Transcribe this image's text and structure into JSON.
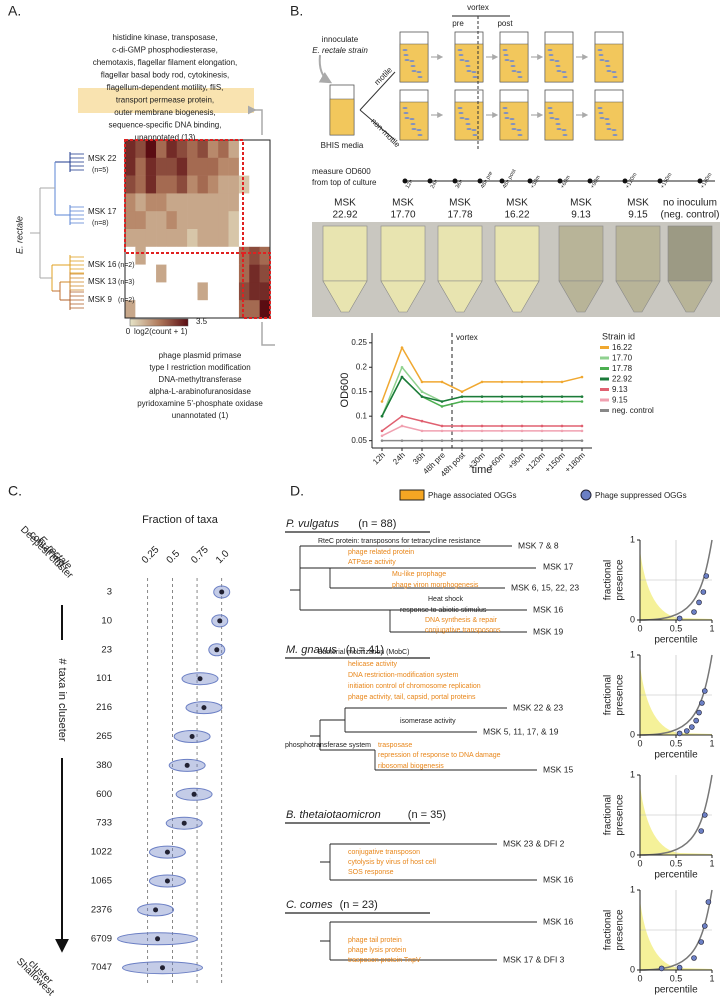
{
  "panel_a": {
    "label": "A.",
    "top_annotation": [
      "histidine kinase, transposase,",
      "c-di-GMP phosphodiesterase,",
      "chemotaxis, flagellar filament elongation,",
      "flagellar basal body rod, cytokinesis,",
      "flagellum-dependent motility, fliS,",
      "transport permease protein,",
      "outer membrane biogenesis,",
      "sequence-specific DNA binding,",
      "unannotated (13)"
    ],
    "bottom_annotation": [
      "phage plasmid primase",
      "type I restriction modification",
      "DNA-methyltransferase",
      "alpha-L-arabinofuranosidase",
      "pyridoxamine 5'-phosphate oxidase",
      "unannotated (1)"
    ],
    "species": "E. rectale",
    "clusters": [
      {
        "name": "MSK 22",
        "n": "(n=5)",
        "color": "#1f3b8f"
      },
      {
        "name": "MSK 17",
        "n": "(n=8)",
        "color": "#5b86d6"
      },
      {
        "name": "MSK 16",
        "n": "(n=2)",
        "color": "#e0a020"
      },
      {
        "name": "MSK 13",
        "n": "(n=3)",
        "color": "#d08a2a"
      },
      {
        "name": "MSK 9",
        "n": "(n=2)",
        "color": "#b0602a"
      }
    ],
    "heatmap": [
      [
        3,
        2.5,
        3.5,
        2,
        3,
        2.5,
        2,
        2.5,
        1.5,
        2,
        1,
        0,
        0,
        0
      ],
      [
        3,
        2,
        3,
        2.5,
        2.5,
        3,
        2,
        2,
        2,
        1.5,
        1.5,
        0,
        0,
        0
      ],
      [
        2.5,
        2,
        3,
        2,
        2,
        2.5,
        1.5,
        2,
        1.5,
        1,
        1,
        0.5,
        0,
        0
      ],
      [
        1.5,
        1,
        1.5,
        1.5,
        1,
        1,
        1,
        1,
        1,
        1,
        1,
        0,
        0,
        0
      ],
      [
        1.5,
        1.5,
        1,
        1,
        1.5,
        1,
        1,
        1,
        1,
        1,
        0.5,
        0,
        0,
        0
      ],
      [
        1,
        1,
        1,
        1,
        1,
        1,
        0.5,
        1,
        1,
        1,
        0.5,
        0,
        0,
        0
      ],
      [
        0,
        1,
        0,
        0,
        0,
        0,
        0,
        0,
        0,
        0,
        0,
        2,
        2.5,
        2
      ],
      [
        0,
        0,
        0,
        1,
        0,
        0,
        0,
        0,
        0,
        0,
        0,
        2,
        3,
        2.5
      ],
      [
        0,
        0,
        0,
        0,
        0,
        0,
        0,
        1,
        0,
        0,
        0,
        2.5,
        3,
        3
      ],
      [
        1,
        0,
        0,
        0,
        0,
        0,
        0,
        0,
        0,
        0,
        0,
        2,
        2,
        3.5
      ]
    ],
    "colorbar": {
      "min": 0,
      "max": 3.5,
      "label": "log2(count + 1)"
    }
  },
  "panel_b": {
    "label": "B.",
    "inoculate": "innoculate",
    "strain": "E. rectale strain",
    "media": "BHIS media",
    "motile": "motile",
    "non_motile": "non-motile",
    "vortex": "vortex",
    "pre": "pre",
    "post": "post",
    "measure": [
      "measure OD600",
      "from top of culture"
    ],
    "tubes": [
      [
        "MSK",
        "22.92"
      ],
      [
        "MSK",
        "17.70"
      ],
      [
        "MSK",
        "17.78"
      ],
      [
        "MSK",
        "16.22"
      ],
      [
        "MSK",
        "9.13"
      ],
      [
        "MSK",
        "9.15"
      ],
      [
        "no inoculum",
        "(neg. control)"
      ]
    ]
  },
  "chart_data": [
    {
      "type": "line",
      "ylabel": "OD600",
      "xlabel": "time",
      "annotation": "vortex",
      "legend_title": "Strain id",
      "categories": [
        "12h",
        "24h",
        "36h",
        "48h pre",
        "48h post",
        "+30m",
        "+60m",
        "+90m",
        "+120m",
        "+150m",
        "+180m"
      ],
      "ylim": [
        0.035,
        0.27
      ],
      "yticks": [
        0.05,
        0.1,
        0.15,
        0.2,
        0.25
      ],
      "series": [
        {
          "name": "16.22",
          "color": "#f0a830",
          "values": [
            0.13,
            0.24,
            0.17,
            0.17,
            0.15,
            0.17,
            0.17,
            0.17,
            0.17,
            0.17,
            0.18
          ]
        },
        {
          "name": "17.70",
          "color": "#8fd18f",
          "values": [
            0.1,
            0.2,
            0.15,
            0.13,
            0.14,
            0.14,
            0.14,
            0.14,
            0.14,
            0.14,
            0.14
          ]
        },
        {
          "name": "17.78",
          "color": "#4caf50",
          "values": [
            0.1,
            0.18,
            0.14,
            0.12,
            0.13,
            0.13,
            0.13,
            0.13,
            0.13,
            0.13,
            0.13
          ]
        },
        {
          "name": "22.92",
          "color": "#1b7a3a",
          "values": [
            0.1,
            0.18,
            0.14,
            0.13,
            0.14,
            0.14,
            0.14,
            0.14,
            0.14,
            0.14,
            0.14
          ]
        },
        {
          "name": "9.13",
          "color": "#e06070",
          "values": [
            0.07,
            0.1,
            0.09,
            0.08,
            0.08,
            0.08,
            0.08,
            0.08,
            0.08,
            0.08,
            0.08
          ]
        },
        {
          "name": "9.15",
          "color": "#f0a0b0",
          "values": [
            0.06,
            0.08,
            0.07,
            0.07,
            0.07,
            0.07,
            0.07,
            0.07,
            0.07,
            0.07,
            0.07
          ]
        },
        {
          "name": "neg. control",
          "color": "#888888",
          "values": [
            0.05,
            0.05,
            0.05,
            0.05,
            0.05,
            0.05,
            0.05,
            0.05,
            0.05,
            0.05,
            0.05
          ]
        }
      ]
    },
    {
      "type": "violin",
      "label": "C.",
      "title": "Fraction of taxa",
      "color": "#6b7fc4",
      "categories": [
        "3",
        "10",
        "23",
        "101",
        "216",
        "265",
        "380",
        "600",
        "733",
        "1022",
        "1065",
        "2376",
        "6709",
        "7047"
      ],
      "values": [
        1.0,
        0.98,
        0.95,
        0.78,
        0.82,
        0.7,
        0.65,
        0.72,
        0.62,
        0.45,
        0.45,
        0.33,
        0.35,
        0.4
      ],
      "xlim": [
        0,
        1.1
      ],
      "xticks": [
        0.25,
        0.5,
        0.75,
        {
          "value": 1,
          "label": "1.0"
        }
      ],
      "top_label": [
        "Deepest cluster",
        "containing",
        "E. rectale"
      ],
      "axis_label": "# taxa in cluseter",
      "bottom_label": [
        "Shallowest",
        "cluster"
      ]
    }
  ],
  "panel_d": {
    "label": "D.",
    "legend": [
      "Phage associated OGGs",
      "Phage suppressed OGGs"
    ],
    "plot": {
      "xlabel": "percentile",
      "ylabel": [
        "fractional",
        "presence"
      ],
      "xticks": [
        0,
        0.5,
        1
      ],
      "yticks": [
        0,
        1
      ]
    },
    "groups": [
      {
        "species": "P. vulgatus",
        "n": "(n = 88)",
        "leaves": [
          "MSK 7 & 8",
          "MSK 17",
          "MSK 6, 15, 22, 23",
          "MSK 16",
          "MSK 19"
        ],
        "notes": [
          "RteC protein: transposons for tetracycline resistance",
          "Heat shock",
          "response to abiotic stimulus",
          "Bacterial mobilization (MobC)"
        ],
        "phage": [
          "phage related protein",
          "ATPase activity",
          "Mu-like prophage",
          "phage viron morphogenesis",
          "DNA synthesis & repair",
          "conjugative transposons"
        ],
        "points_x": [
          0.55,
          0.75,
          0.82,
          0.88,
          0.92
        ],
        "points_y": [
          0.02,
          0.1,
          0.22,
          0.35,
          0.55
        ]
      },
      {
        "species": "M. gnavus",
        "n": "(n = 41)",
        "leaves": [
          "MSK 22 & 23",
          "MSK 5, 11, 17, & 19",
          "MSK 15"
        ],
        "notes": [
          "isomerase activity",
          "phosphotransferase system"
        ],
        "phage": [
          "helicase activity",
          "DNA restriction-modification system",
          "initiation control of chromosome replication",
          "phage activity, tail, capsid, portal proteins",
          "trasposase",
          "repression of response to DNA damage",
          "ribosomal biogenesis"
        ],
        "points_x": [
          0.55,
          0.65,
          0.72,
          0.78,
          0.82,
          0.86,
          0.9
        ],
        "points_y": [
          0.02,
          0.05,
          0.1,
          0.18,
          0.28,
          0.4,
          0.55
        ]
      },
      {
        "species": "B. thetaiotaomicron",
        "n": "(n = 35)",
        "leaves": [
          "MSK 23 & DFI 2",
          "MSK 16"
        ],
        "notes": [],
        "phage": [
          "conjugative transposon",
          "cytolysis by virus of host cell",
          "SOS response"
        ],
        "points_x": [
          0.85,
          0.9
        ],
        "points_y": [
          0.3,
          0.5
        ]
      },
      {
        "species": "C. comes",
        "n": "(n = 23)",
        "leaves": [
          "MSK 16",
          "MSK 17 & DFI 3"
        ],
        "notes": [],
        "phage": [
          "phage tail protein",
          "phage lysis protein",
          "trasposon protein TnpV"
        ],
        "points_x": [
          0.3,
          0.55,
          0.75,
          0.85,
          0.9,
          0.95
        ],
        "points_y": [
          0.02,
          0.03,
          0.15,
          0.35,
          0.55,
          0.85
        ]
      }
    ]
  }
}
